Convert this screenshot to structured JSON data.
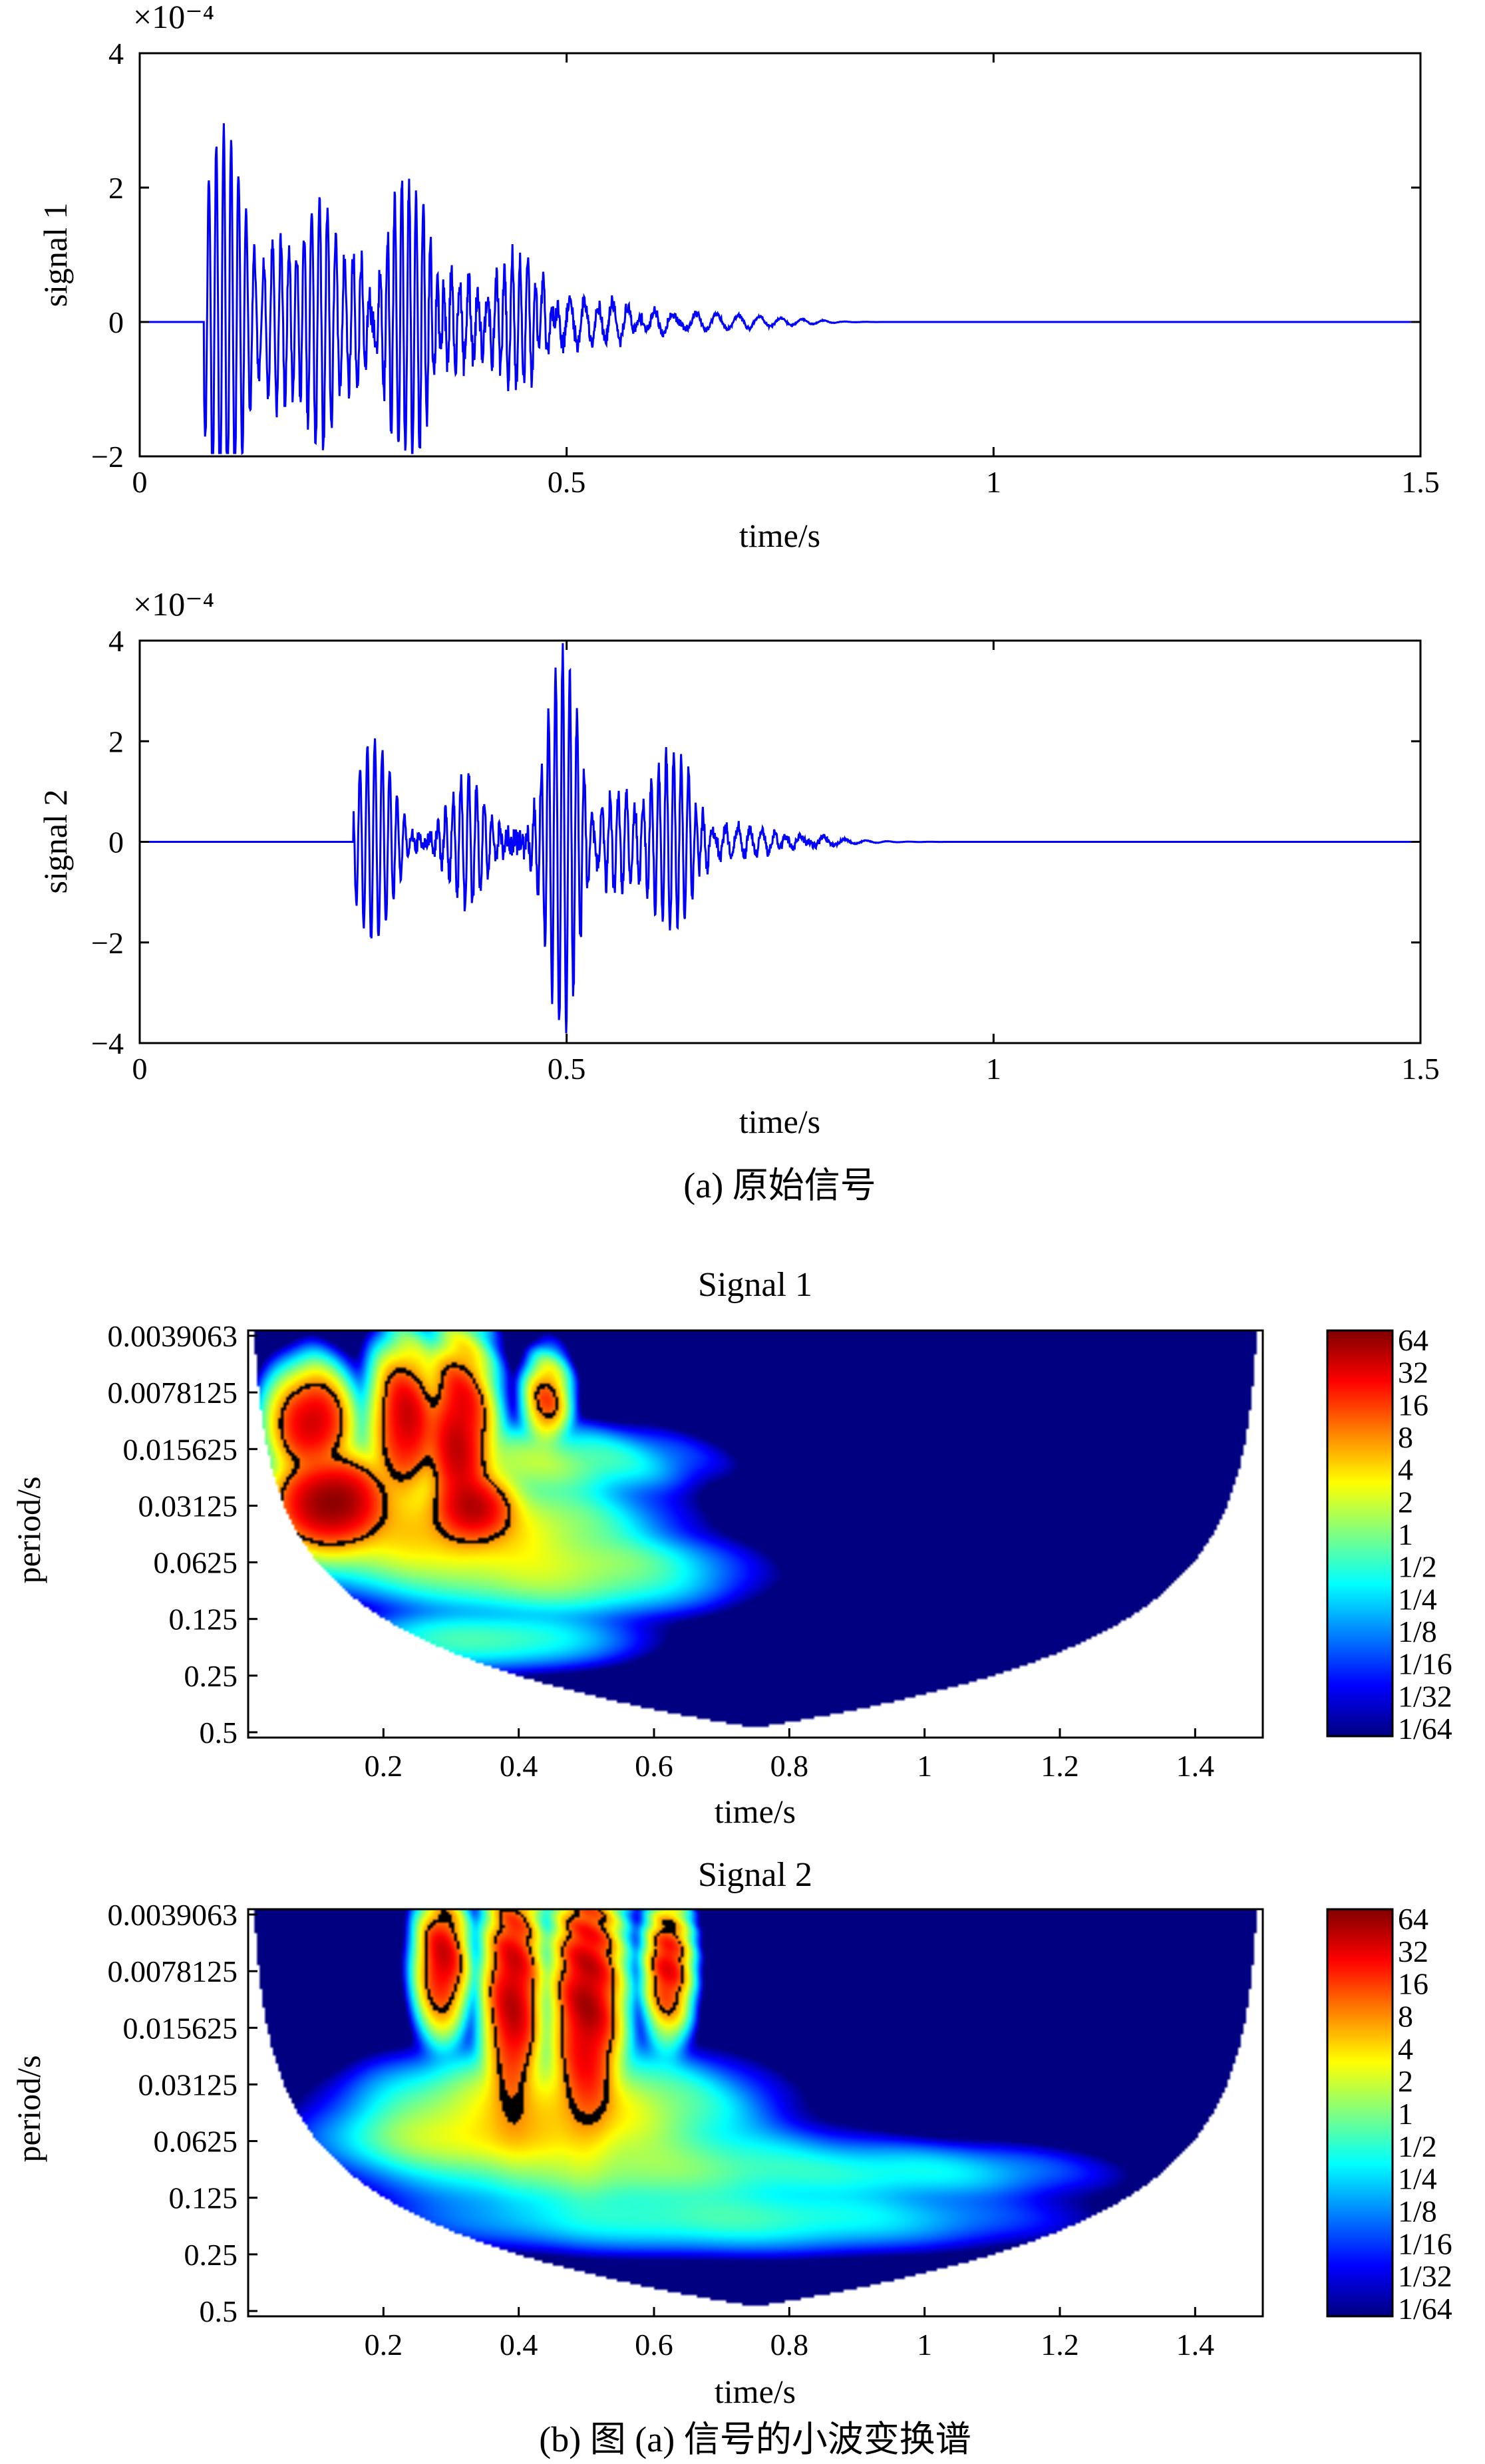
{
  "chart_data": [
    {
      "type": "line",
      "ylabel": "signal 1",
      "xlabel": "time/s",
      "exponent": "×10⁻⁴",
      "xlim": [
        0,
        1.5
      ],
      "ylim": [
        -2,
        4
      ],
      "xticks": [
        "0",
        "0.5",
        "1",
        "1.5"
      ],
      "xtick_values": [
        0,
        0.5,
        1,
        1.5
      ],
      "yticks": [
        "4",
        "2",
        "0",
        "−2"
      ],
      "ytick_values": [
        4,
        2,
        0,
        -2
      ],
      "series": [
        {
          "name": "signal 1",
          "color": "#0000ff",
          "bursts": [
            {
              "t": 0.098,
              "a": 2.9,
              "w": 0.03,
              "f": 115
            },
            {
              "t": 0.155,
              "a": 1.2,
              "w": 0.03,
              "f": 100
            },
            {
              "t": 0.21,
              "a": 1.9,
              "w": 0.03,
              "f": 110
            },
            {
              "t": 0.25,
              "a": 1.2,
              "w": 0.03,
              "f": 105
            },
            {
              "t": 0.315,
              "a": 2.1,
              "w": 0.035,
              "f": 120
            },
            {
              "t": 0.385,
              "a": 0.6,
              "w": 0.035,
              "f": 95
            },
            {
              "t": 0.445,
              "a": 1.0,
              "w": 0.03,
              "f": 110
            },
            {
              "t": 0.52,
              "a": 0.3,
              "w": 0.08,
              "f": 60
            },
            {
              "t": 0.65,
              "a": 0.12,
              "w": 0.12,
              "f": 40
            }
          ],
          "onset": 0.075,
          "seed": 7
        }
      ]
    },
    {
      "type": "line",
      "ylabel": "signal 2",
      "xlabel": "time/s",
      "exponent": "×10⁻⁴",
      "xlim": [
        0,
        1.5
      ],
      "ylim": [
        -4,
        4
      ],
      "xticks": [
        "0",
        "0.5",
        "1",
        "1.5"
      ],
      "xtick_values": [
        0,
        0.5,
        1,
        1.5
      ],
      "yticks": [
        "4",
        "2",
        "0",
        "−2",
        "−4"
      ],
      "ytick_values": [
        4,
        2,
        0,
        -2,
        -4
      ],
      "series": [
        {
          "name": "signal 2",
          "color": "#0000ff",
          "bursts": [
            {
              "t": 0.275,
              "a": 2.0,
              "w": 0.03,
              "f": 115
            },
            {
              "t": 0.385,
              "a": 1.3,
              "w": 0.03,
              "f": 110
            },
            {
              "t": 0.495,
              "a": 3.8,
              "w": 0.025,
              "f": 120
            },
            {
              "t": 0.56,
              "a": 1.0,
              "w": 0.035,
              "f": 105
            },
            {
              "t": 0.625,
              "a": 1.8,
              "w": 0.03,
              "f": 115
            },
            {
              "t": 0.7,
              "a": 0.3,
              "w": 0.06,
              "f": 70
            },
            {
              "t": 0.85,
              "a": 0.12,
              "w": 0.1,
              "f": 40
            }
          ],
          "onset": 0.25,
          "seed": 19
        }
      ]
    },
    {
      "type": "heatmap",
      "title": "Signal 1",
      "xlabel": "time/s",
      "ylabel": "period/s",
      "xlim": [
        0,
        1.5
      ],
      "xticks": [
        "0.2",
        "0.4",
        "0.6",
        "0.8",
        "1",
        "1.2",
        "1.4"
      ],
      "xtick_values": [
        0.2,
        0.4,
        0.6,
        0.8,
        1.0,
        1.2,
        1.4
      ],
      "yticks": [
        "0.0039063",
        "0.0078125",
        "0.015625",
        "0.03125",
        "0.0625",
        "0.125",
        "0.25",
        "0.5"
      ],
      "colorbar_labels": [
        "64",
        "32",
        "16",
        "8",
        "4",
        "2",
        "1",
        "1/2",
        "1/4",
        "1/8",
        "1/16",
        "1/32",
        "1/64"
      ],
      "blobs": [
        {
          "t": 0.09,
          "lp": 1.6,
          "st": 0.035,
          "sl": 0.55,
          "v": 5.2
        },
        {
          "t": 0.12,
          "lp": 3.0,
          "st": 0.05,
          "sl": 0.5,
          "v": 6.0
        },
        {
          "t": 0.23,
          "lp": 1.6,
          "st": 0.03,
          "sl": 0.8,
          "v": 5.0
        },
        {
          "t": 0.31,
          "lp": 1.8,
          "st": 0.03,
          "sl": 1.0,
          "v": 5.2
        },
        {
          "t": 0.33,
          "lp": 3.1,
          "st": 0.04,
          "sl": 0.4,
          "v": 5.0
        },
        {
          "t": 0.44,
          "lp": 1.2,
          "st": 0.02,
          "sl": 0.45,
          "v": 3.6
        },
        {
          "t": 0.3,
          "lp": 3.5,
          "st": 0.16,
          "sl": 0.6,
          "v": 2.2
        },
        {
          "t": 0.45,
          "lp": 4.3,
          "st": 0.16,
          "sl": 0.45,
          "v": 0.3
        },
        {
          "t": 0.35,
          "lp": 5.4,
          "st": 0.14,
          "sl": 0.35,
          "v": -0.6
        },
        {
          "t": 0.5,
          "lp": 4.0,
          "st": 0.12,
          "sl": 0.3,
          "v": -1.2
        },
        {
          "t": 0.38,
          "lp": 2.3,
          "st": 0.16,
          "sl": 0.4,
          "v": 0.6
        }
      ]
    },
    {
      "type": "heatmap",
      "title": "Signal 2",
      "xlabel": "time/s",
      "ylabel": "period/s",
      "xlim": [
        0,
        1.5
      ],
      "xticks": [
        "0.2",
        "0.4",
        "0.6",
        "0.8",
        "1",
        "1.2",
        "1.4"
      ],
      "xtick_values": [
        0.2,
        0.4,
        0.6,
        0.8,
        1.0,
        1.2,
        1.4
      ],
      "yticks": [
        "0.0039063",
        "0.0078125",
        "0.015625",
        "0.03125",
        "0.0625",
        "0.125",
        "0.25",
        "0.5"
      ],
      "colorbar_labels": [
        "64",
        "32",
        "16",
        "8",
        "4",
        "2",
        "1",
        "1/2",
        "1/4",
        "1/8",
        "1/16",
        "1/32",
        "1/64"
      ],
      "blobs": [
        {
          "t": 0.285,
          "lp": 0.9,
          "st": 0.022,
          "sl": 0.7,
          "v": 5.0
        },
        {
          "t": 0.39,
          "lp": 1.5,
          "st": 0.025,
          "sl": 1.3,
          "v": 5.2
        },
        {
          "t": 0.5,
          "lp": 1.6,
          "st": 0.03,
          "sl": 1.4,
          "v": 5.4
        },
        {
          "t": 0.62,
          "lp": 1.0,
          "st": 0.02,
          "sl": 0.7,
          "v": 4.6
        },
        {
          "t": 0.45,
          "lp": 3.5,
          "st": 0.16,
          "sl": 0.6,
          "v": 2.0
        },
        {
          "t": 0.55,
          "lp": 4.5,
          "st": 0.22,
          "sl": 0.5,
          "v": 0.2
        },
        {
          "t": 0.7,
          "lp": 5.4,
          "st": 0.3,
          "sl": 0.4,
          "v": -0.8
        },
        {
          "t": 0.95,
          "lp": 4.6,
          "st": 0.2,
          "sl": 0.35,
          "v": -1.4
        },
        {
          "t": 0.35,
          "lp": 4.0,
          "st": 0.14,
          "sl": 0.4,
          "v": 1.0
        }
      ]
    }
  ],
  "captions": {
    "a": "(a) 原始信号",
    "b": "(b) 图 (a) 信号的小波变换谱"
  }
}
